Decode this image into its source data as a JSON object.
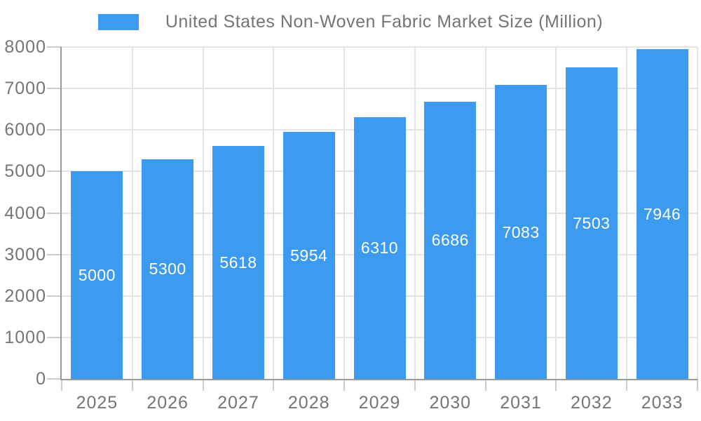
{
  "chart_data": {
    "type": "bar",
    "title": "United States Non-Woven Fabric Market Size (Million)",
    "legend": [
      {
        "label": "United States Non-Woven Fabric Market Size (Million)",
        "color": "#3C9BF0"
      }
    ],
    "legend_position": "top-center",
    "categories": [
      "2025",
      "2026",
      "2027",
      "2028",
      "2029",
      "2030",
      "2031",
      "2032",
      "2033"
    ],
    "series": [
      {
        "name": "United States Non-Woven Fabric Market Size (Million)",
        "values": [
          5000,
          5300,
          5618,
          5954,
          6310,
          6686,
          7083,
          7503,
          7946
        ]
      }
    ],
    "value_labels_visible": true,
    "xlabel": "",
    "ylabel": "",
    "ylim": [
      0,
      8000
    ],
    "y_ticks": [
      0,
      1000,
      2000,
      3000,
      4000,
      5000,
      6000,
      7000,
      8000
    ],
    "grid": true
  },
  "style": {
    "bar_color": "#3C9BF0",
    "axis_text_color": "#757575",
    "bar_label_color": "#ffffff",
    "grid_color": "#e4e4e4",
    "tick_color": "#cccccc",
    "axis_line_color": "#999999",
    "background": "#ffffff"
  }
}
